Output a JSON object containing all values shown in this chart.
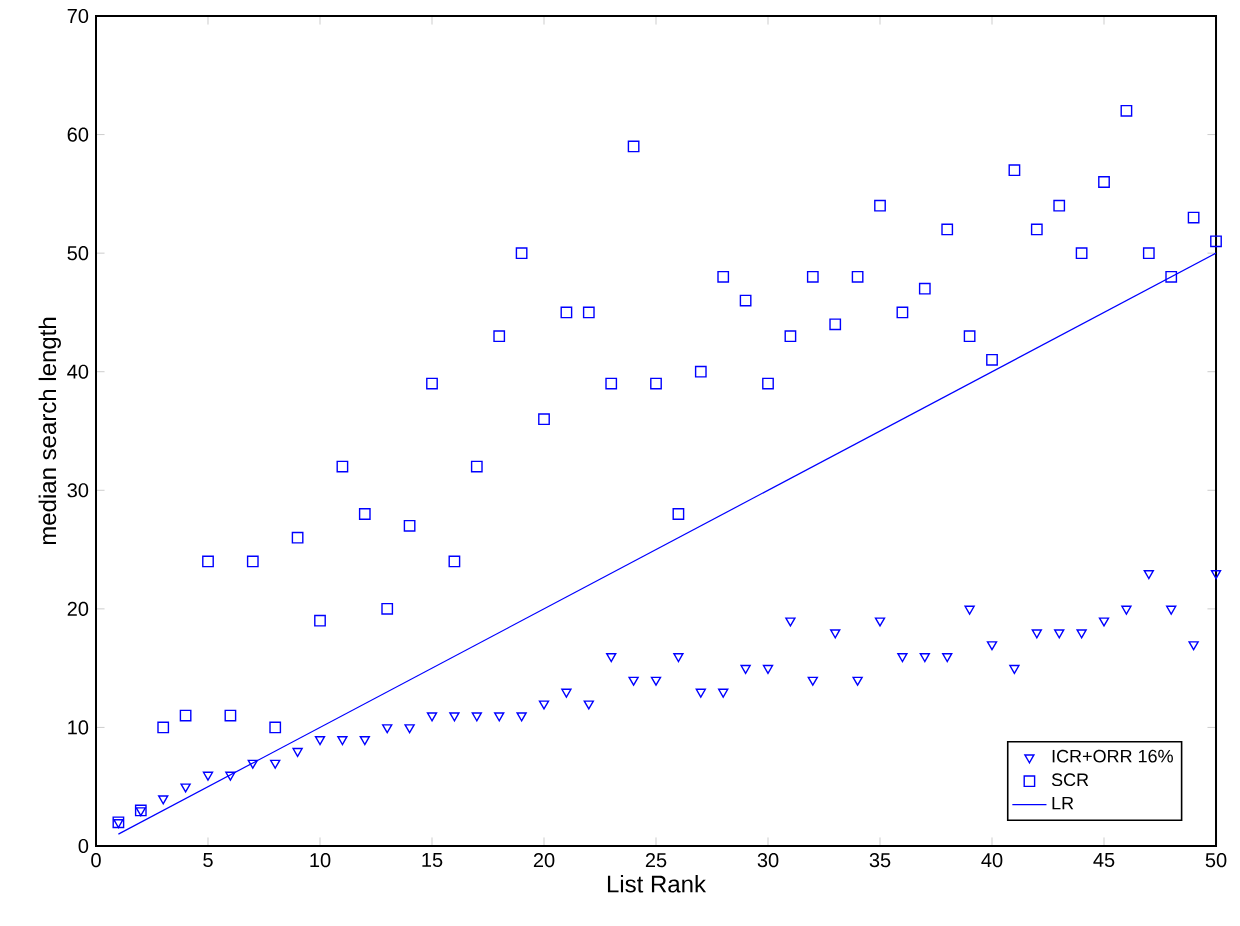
{
  "chart_data": {
    "type": "scatter",
    "xlabel": "List Rank",
    "ylabel": "median search length",
    "xlim": [
      0,
      50
    ],
    "ylim": [
      0,
      70
    ],
    "xticks": [
      0,
      5,
      10,
      15,
      20,
      25,
      30,
      35,
      40,
      45,
      50
    ],
    "yticks": [
      0,
      10,
      20,
      30,
      40,
      50,
      60,
      70
    ],
    "grid": false,
    "legend": "bottom right",
    "series": [
      {
        "name": "ICR+ORR 16%",
        "color": "#0000ff",
        "marker": "triangle",
        "x": [
          1,
          2,
          3,
          4,
          5,
          6,
          7,
          8,
          9,
          10,
          11,
          12,
          13,
          14,
          15,
          16,
          17,
          18,
          19,
          20,
          21,
          22,
          23,
          24,
          25,
          26,
          27,
          28,
          29,
          30,
          31,
          32,
          33,
          34,
          35,
          36,
          37,
          38,
          39,
          40,
          41,
          42,
          43,
          44,
          45,
          46,
          47,
          48,
          49,
          50
        ],
        "values": [
          2,
          3,
          4,
          5,
          6,
          6,
          7,
          7,
          8,
          9,
          9,
          9,
          10,
          10,
          11,
          11,
          11,
          11,
          11,
          12,
          13,
          12,
          16,
          14,
          14,
          16,
          13,
          13,
          15,
          15,
          19,
          14,
          18,
          14,
          19,
          16,
          16,
          16,
          20,
          17,
          15,
          18,
          18,
          18,
          19,
          20,
          23,
          20,
          17,
          23
        ]
      },
      {
        "name": "SCR",
        "color": "#0000fe",
        "marker": "square",
        "x": [
          1,
          2,
          3,
          4,
          5,
          6,
          7,
          8,
          9,
          10,
          11,
          12,
          13,
          14,
          15,
          16,
          17,
          18,
          19,
          20,
          21,
          22,
          23,
          24,
          25,
          26,
          27,
          28,
          29,
          30,
          31,
          32,
          33,
          34,
          35,
          36,
          37,
          38,
          39,
          40,
          41,
          42,
          43,
          44,
          45,
          46,
          47,
          48,
          49,
          50
        ],
        "values": [
          2,
          3,
          10,
          11,
          24,
          11,
          24,
          10,
          26,
          19,
          32,
          28,
          20,
          27,
          39,
          24,
          32,
          43,
          50,
          36,
          45,
          45,
          39,
          59,
          39,
          28,
          40,
          48,
          46,
          39,
          43,
          48,
          44,
          48,
          54,
          45,
          47,
          52,
          43,
          41,
          57,
          52,
          54,
          50,
          56,
          62,
          50,
          48,
          53,
          51
        ]
      },
      {
        "name": "LR",
        "color": "#0000ff",
        "type": "line",
        "marker": "none",
        "line_style": "solid",
        "x": [
          1,
          50
        ],
        "values": [
          1,
          50
        ]
      }
    ]
  }
}
